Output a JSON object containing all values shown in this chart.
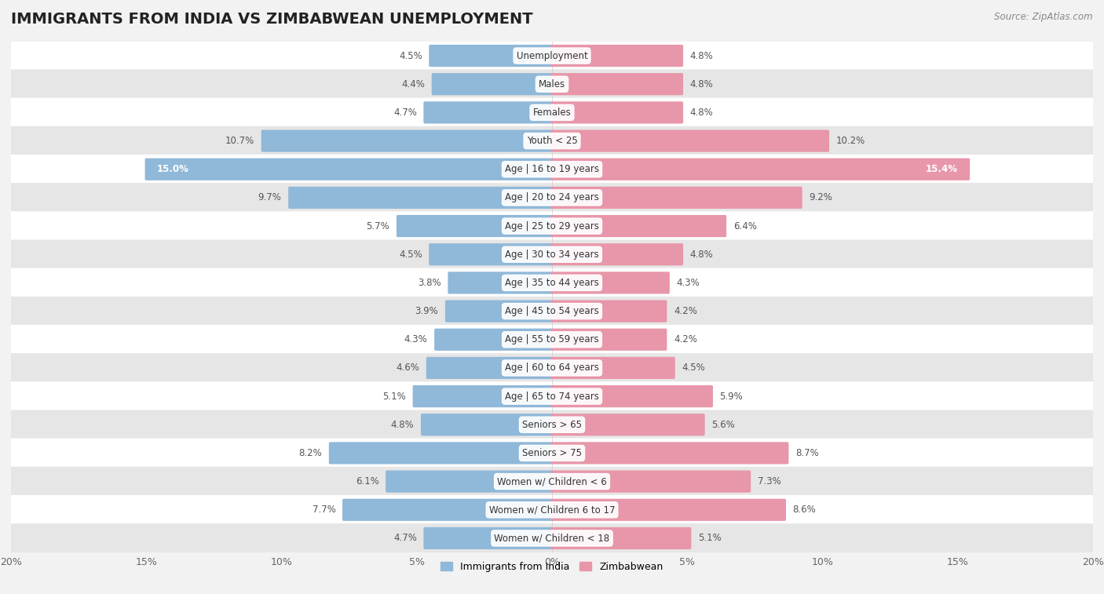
{
  "title": "IMMIGRANTS FROM INDIA VS ZIMBABWEAN UNEMPLOYMENT",
  "source": "Source: ZipAtlas.com",
  "categories": [
    "Unemployment",
    "Males",
    "Females",
    "Youth < 25",
    "Age | 16 to 19 years",
    "Age | 20 to 24 years",
    "Age | 25 to 29 years",
    "Age | 30 to 34 years",
    "Age | 35 to 44 years",
    "Age | 45 to 54 years",
    "Age | 55 to 59 years",
    "Age | 60 to 64 years",
    "Age | 65 to 74 years",
    "Seniors > 65",
    "Seniors > 75",
    "Women w/ Children < 6",
    "Women w/ Children 6 to 17",
    "Women w/ Children < 18"
  ],
  "india_values": [
    4.5,
    4.4,
    4.7,
    10.7,
    15.0,
    9.7,
    5.7,
    4.5,
    3.8,
    3.9,
    4.3,
    4.6,
    5.1,
    4.8,
    8.2,
    6.1,
    7.7,
    4.7
  ],
  "zimbabwe_values": [
    4.8,
    4.8,
    4.8,
    10.2,
    15.4,
    9.2,
    6.4,
    4.8,
    4.3,
    4.2,
    4.2,
    4.5,
    5.9,
    5.6,
    8.7,
    7.3,
    8.6,
    5.1
  ],
  "india_color": "#90b8d8",
  "zimbabwe_color": "#e896aa",
  "india_label": "Immigrants from India",
  "zimbabwe_label": "Zimbabwean",
  "xlim": 20.0,
  "bar_height": 0.68,
  "bg_color": "#f2f2f2",
  "row_color_light": "#ffffff",
  "row_color_dark": "#e6e6e6",
  "title_fontsize": 14,
  "label_fontsize": 9,
  "value_fontsize": 8.5,
  "axis_label_fontsize": 9
}
